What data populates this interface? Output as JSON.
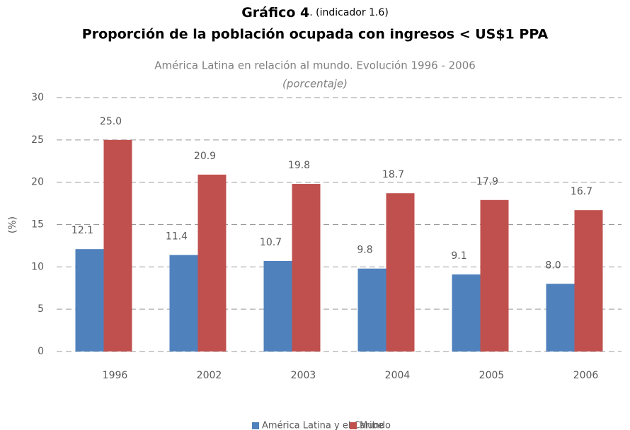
{
  "chart_data": {
    "type": "bar",
    "title": "Gráfico 4",
    "title_suffix": ". (indicador 1.6)",
    "subtitle": "Proporción de la población ocupada con ingresos < US$1 PPA",
    "caption": "América Latina en relación al mundo. Evolución 1996 - 2006",
    "unit_note": "(porcentaje)",
    "y_label": "(%)",
    "categories": [
      "1996",
      "2002",
      "2003",
      "2004",
      "2005",
      "2006"
    ],
    "series": [
      {
        "name": "América Latina y el Caribe",
        "color": "#4f81bd",
        "values": [
          12.1,
          11.4,
          10.7,
          9.8,
          9.1,
          8.0
        ],
        "value_labels": [
          "12.1",
          "11.4",
          "10.7",
          "9.8",
          "9.1",
          "8.0"
        ]
      },
      {
        "name": "Mundo",
        "color": "#c0504d",
        "values": [
          25.0,
          20.9,
          19.8,
          18.7,
          17.9,
          16.7
        ],
        "value_labels": [
          "25.0",
          "20.9",
          "19.8",
          "18.7",
          "17.9",
          "16.7"
        ]
      }
    ],
    "ylim": [
      0,
      30
    ],
    "yticks": [
      0,
      5,
      10,
      15,
      20,
      25,
      30
    ],
    "grid": true,
    "legend": "bottom"
  }
}
